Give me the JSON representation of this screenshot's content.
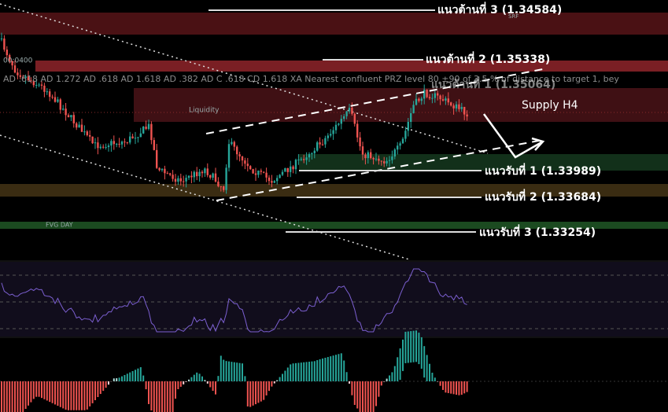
{
  "resistance": [
    "แนวต้านที่ 3 (1.34584)",
    "แนวต้านที่ 2 (1.35338)",
    "แนวต้านที่ 1 (1.35064)"
  ],
  "support": [
    "แนวรับที่ 1 (1.33989)",
    "แนวรับที่ 2 (1.33684)",
    "แนวรับที่ 3 (1.33254)"
  ],
  "supply_label": "Supply H4",
  "liquidity_label": "Liquidity",
  "fvg_label": "FVG DAY",
  "tag": "SRF",
  "time_label": "00:0400",
  "harmonic_text": "AD .618 AD 1.272 AD .618 AD 1.618 AD .382 AD C .618 CD 1.618 XA Nearest confluent PRZ level 80 ±90 of 3.5 % of distance to target 1, bey"
}
